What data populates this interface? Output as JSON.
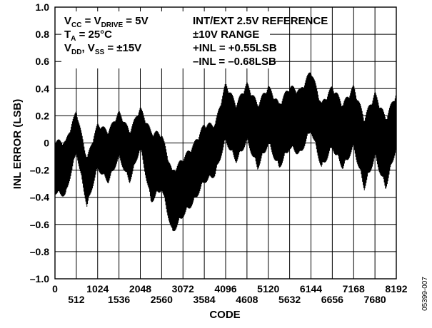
{
  "chart_data": {
    "type": "line",
    "xlabel": "CODE",
    "ylabel": "INL ERROR (LSB)",
    "xlim": [
      0,
      8192
    ],
    "ylim": [
      -1.0,
      1.0
    ],
    "grid": true,
    "x_ticks_upper": [
      "0",
      "1024",
      "2048",
      "3072",
      "4096",
      "5120",
      "6144",
      "7168",
      "8192"
    ],
    "x_ticks_lower": [
      "512",
      "1536",
      "2560",
      "3584",
      "4608",
      "5632",
      "6656",
      "7680"
    ],
    "y_ticks": [
      "1.0",
      "0.8",
      "0.6",
      "0.4",
      "0.2",
      "0",
      "–0.2",
      "–0.4",
      "–0.6",
      "–0.8",
      "–1.0"
    ],
    "annotations": {
      "line1": {
        "a": "V",
        "a_sub": "CC",
        "b": " = V",
        "b_sub": "DRIVE",
        "c": " = 5V"
      },
      "line2": {
        "a": "T",
        "a_sub": "A",
        "b": " = 25°C"
      },
      "line3": {
        "a": "V",
        "a_sub": "DD",
        "b": ", V",
        "b_sub": "SS",
        "c": " = ±15V"
      },
      "right": [
        "INT/EXT 2.5V REFERENCE",
        "±10V RANGE",
        "+INL = +0.55LSB",
        "–INL = –0.68LSB"
      ]
    },
    "series": [
      {
        "x": [
          0,
          256,
          512,
          768,
          1024,
          1280,
          1536,
          1792,
          2048,
          2304,
          2560,
          2816,
          3072,
          3328,
          3584,
          3840,
          4096,
          4352,
          4608,
          4864,
          5120,
          5376,
          5632,
          5888,
          6144,
          6400,
          6656,
          6912,
          7168,
          7424,
          7680,
          7936,
          8192
        ],
        "y_max": [
          0.03,
          0.02,
          0.25,
          -0.1,
          0.15,
          0.1,
          0.24,
          0.1,
          0.27,
          0.1,
          0.08,
          -0.2,
          -0.1,
          0.0,
          0.15,
          0.15,
          0.45,
          0.3,
          0.45,
          0.3,
          0.43,
          0.3,
          0.43,
          0.4,
          0.55,
          0.3,
          0.43,
          0.3,
          0.43,
          0.2,
          0.38,
          0.2,
          0.38
        ],
        "y_min": [
          -0.38,
          -0.4,
          -0.08,
          -0.48,
          -0.2,
          -0.3,
          -0.12,
          -0.3,
          -0.05,
          -0.45,
          -0.35,
          -0.68,
          -0.55,
          -0.45,
          -0.3,
          -0.25,
          0.0,
          -0.15,
          0.0,
          -0.2,
          -0.02,
          -0.2,
          -0.05,
          -0.1,
          0.08,
          -0.2,
          -0.05,
          -0.2,
          -0.05,
          -0.35,
          -0.12,
          -0.35,
          -0.05
        ]
      }
    ]
  },
  "figure_id": "05399-007"
}
